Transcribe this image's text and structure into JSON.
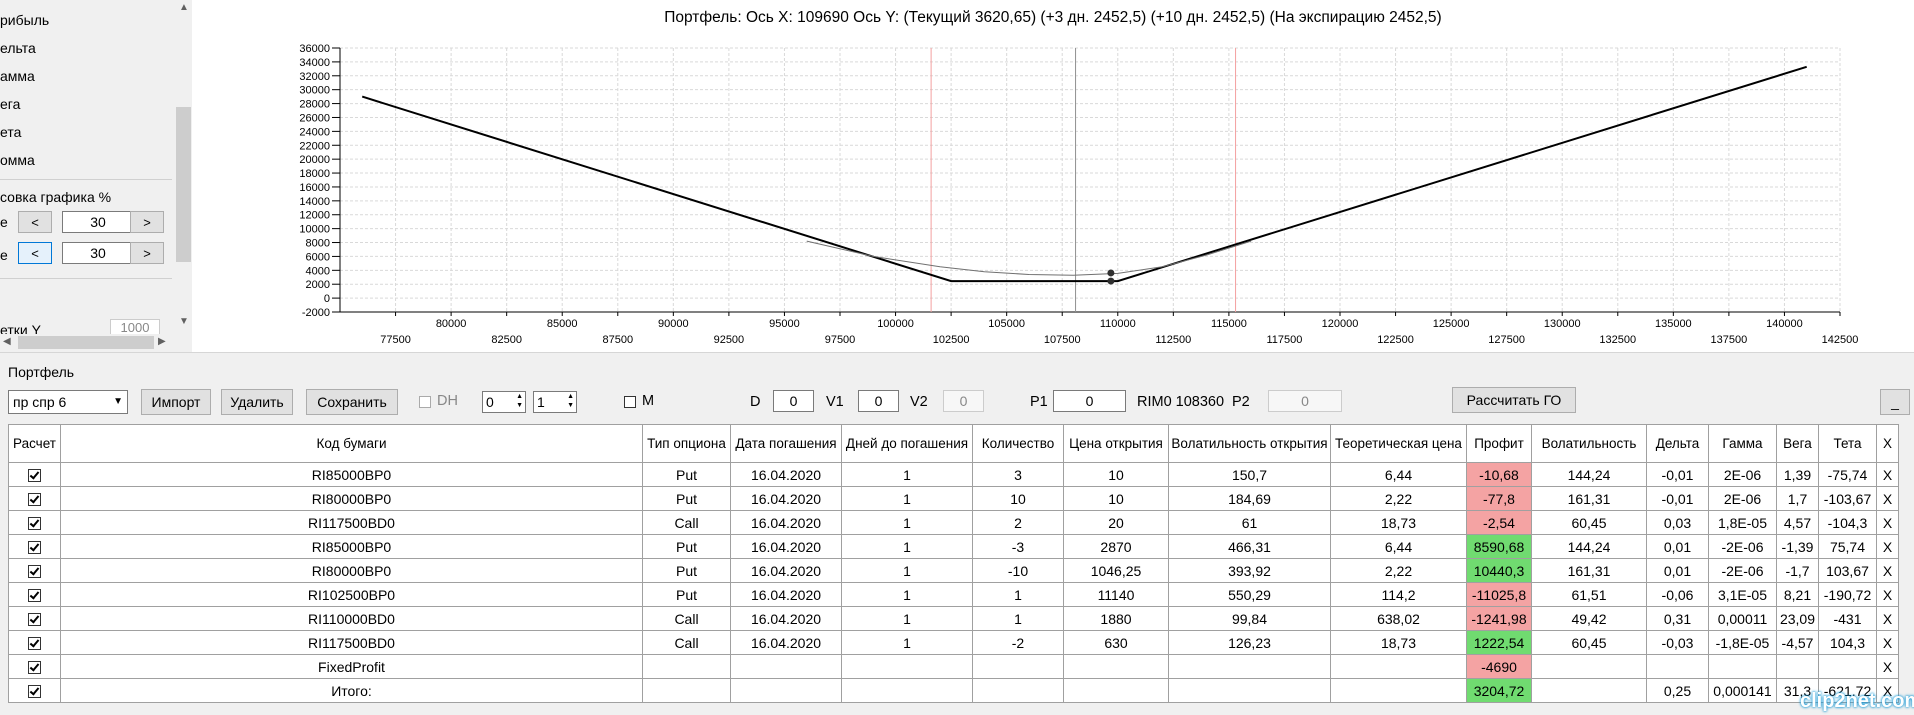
{
  "left_panel": {
    "items": [
      "рибыль",
      "ельта",
      "амма",
      "ега",
      "ета",
      "омма"
    ],
    "section_label": "совка графика %",
    "row1": {
      "label": "е",
      "btn_left": "<",
      "value": "30",
      "btn_right": ">"
    },
    "row2": {
      "label": "е",
      "btn_left": "<",
      "value": "30",
      "btn_right": ">"
    },
    "grid_y_label": "етки Y",
    "grid_y_value": "1000"
  },
  "chart_title": "Портфель: Ось X: 109690 Ось Y:  (Текущий 3620,65)  (+3 дн. 2452,5)  (+10 дн. 2452,5)  (На экспирацию 2452,5)",
  "chart_data": {
    "type": "line",
    "title": "Портфель: Ось X: 109690 Ось Y:  (Текущий 3620,65)  (+3 дн. 2452,5)  (+10 дн. 2452,5)  (На экспирацию 2452,5)",
    "xlim": [
      75000,
      142500
    ],
    "ylim": [
      -2000,
      36000
    ],
    "x_ticks_top": [
      80000,
      85000,
      90000,
      95000,
      100000,
      105000,
      110000,
      115000,
      120000,
      125000,
      130000,
      135000,
      140000
    ],
    "x_ticks_bottom": [
      77500,
      82500,
      87500,
      92500,
      97500,
      102500,
      107500,
      112500,
      117500,
      122500,
      127500,
      132500,
      137500,
      142500
    ],
    "y_ticks": [
      -2000,
      0,
      2000,
      4000,
      6000,
      8000,
      10000,
      12000,
      14000,
      16000,
      18000,
      20000,
      22000,
      24000,
      26000,
      28000,
      30000,
      32000,
      34000,
      36000
    ],
    "vertical_lines": [
      {
        "x": 101600,
        "color": "#f4a0a0"
      },
      {
        "x": 108100,
        "color": "#909090"
      },
      {
        "x": 115300,
        "color": "#f4a0a0"
      }
    ],
    "series": [
      {
        "color": "#000000",
        "width": 2,
        "points": [
          [
            76000,
            29000
          ],
          [
            102500,
            2450
          ],
          [
            110000,
            2450
          ],
          [
            141000,
            33300
          ]
        ]
      },
      {
        "color": "#707070",
        "width": 1,
        "points": [
          [
            96000,
            8200
          ],
          [
            99000,
            6000
          ],
          [
            102000,
            4500
          ],
          [
            104000,
            3800
          ],
          [
            106000,
            3400
          ],
          [
            108000,
            3300
          ],
          [
            110000,
            3550
          ],
          [
            112000,
            4500
          ],
          [
            114000,
            6200
          ],
          [
            116000,
            8200
          ]
        ]
      }
    ],
    "markers": [
      [
        109690,
        3620
      ],
      [
        109690,
        2452
      ]
    ],
    "grid": true
  },
  "portfolio_label": "Портфель",
  "toolbar": {
    "portfolio_select": "пр спр 6",
    "import": "Импорт",
    "delete": "Удалить",
    "save": "Сохранить",
    "dh": "DH",
    "spin1": "0",
    "spin2": "1",
    "m": "M",
    "d_label": "D",
    "d_value": "0",
    "v1_label": "V1",
    "v1_value": "0",
    "v2_label": "V2",
    "v2_value": "0",
    "p1_label": "P1",
    "p1_value": "0",
    "rim": "RIM0 108360",
    "p2_label": "P2",
    "p2_value": "0",
    "calc_go": "Рассчитать ГО",
    "minimize": "_"
  },
  "table": {
    "headers": [
      "Расчет",
      "Код бумаги",
      "Тип опциона",
      "Дата погашения",
      "Дней до погашения",
      "Количество",
      "Цена открытия",
      "Волатильность открытия",
      "Теоретическая цена",
      "Профит",
      "Волатильность",
      "Дельта",
      "Гамма",
      "Вега",
      "Тета",
      "X"
    ],
    "rows": [
      [
        "RI85000BP0",
        "Put",
        "16.04.2020",
        "1",
        "3",
        "10",
        "150,7",
        "6,44",
        "-10,68",
        "144,24",
        "-0,01",
        "2E-06",
        "1,39",
        "-75,74",
        "X"
      ],
      [
        "RI80000BP0",
        "Put",
        "16.04.2020",
        "1",
        "10",
        "10",
        "184,69",
        "2,22",
        "-77,8",
        "161,31",
        "-0,01",
        "2E-06",
        "1,7",
        "-103,67",
        "X"
      ],
      [
        "RI117500BD0",
        "Call",
        "16.04.2020",
        "1",
        "2",
        "20",
        "61",
        "18,73",
        "-2,54",
        "60,45",
        "0,03",
        "1,8E-05",
        "4,57",
        "-104,3",
        "X"
      ],
      [
        "RI85000BP0",
        "Put",
        "16.04.2020",
        "1",
        "-3",
        "2870",
        "466,31",
        "6,44",
        "8590,68",
        "144,24",
        "0,01",
        "-2E-06",
        "-1,39",
        "75,74",
        "X"
      ],
      [
        "RI80000BP0",
        "Put",
        "16.04.2020",
        "1",
        "-10",
        "1046,25",
        "393,92",
        "2,22",
        "10440,3",
        "161,31",
        "0,01",
        "-2E-06",
        "-1,7",
        "103,67",
        "X"
      ],
      [
        "RI102500BP0",
        "Put",
        "16.04.2020",
        "1",
        "1",
        "11140",
        "550,29",
        "114,2",
        "-11025,8",
        "61,51",
        "-0,06",
        "3,1E-05",
        "8,21",
        "-190,72",
        "X"
      ],
      [
        "RI110000BD0",
        "Call",
        "16.04.2020",
        "1",
        "1",
        "1880",
        "99,84",
        "638,02",
        "-1241,98",
        "49,42",
        "0,31",
        "0,00011",
        "23,09",
        "-431",
        "X"
      ],
      [
        "RI117500BD0",
        "Call",
        "16.04.2020",
        "1",
        "-2",
        "630",
        "126,23",
        "18,73",
        "1222,54",
        "60,45",
        "-0,03",
        "-1,8E-05",
        "-4,57",
        "104,3",
        "X"
      ],
      [
        "FixedProfit",
        "",
        "",
        "",
        "",
        "",
        "",
        "",
        "-4690",
        "",
        "",
        "",
        "",
        "",
        "X"
      ],
      [
        "Итого:",
        "",
        "",
        "",
        "",
        "",
        "",
        "",
        "3204,72",
        "",
        "0,25",
        "0,000141",
        "31,3",
        "-621,72",
        "X"
      ]
    ],
    "profit_signs": [
      "neg",
      "neg",
      "neg",
      "pos",
      "pos",
      "neg",
      "neg",
      "pos",
      "neg",
      "pos"
    ]
  },
  "watermark": "clip2net.com"
}
